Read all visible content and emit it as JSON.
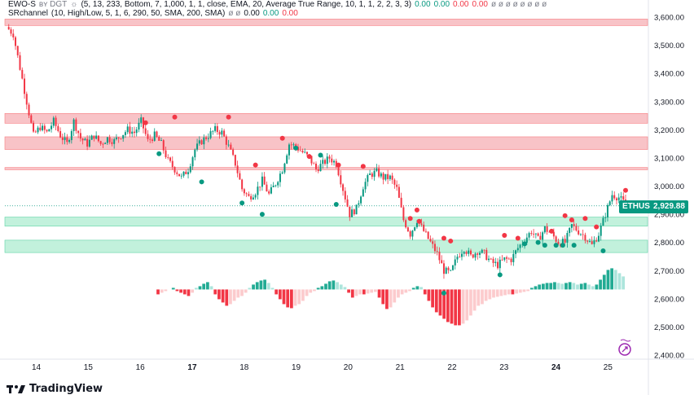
{
  "legend": {
    "ewo_title": "EWO-S",
    "ewo_badge": "ʙʏ DGT",
    "ewo_params": "(5, 13, 233, Bottom, 7, 1,000, 1, 1, close, EMA, 20, Average True Range, 10, 1, 1, 2, 2, 3, 3)",
    "ewo_values": [
      {
        "text": "0.00",
        "color": "#089981"
      },
      {
        "text": "0.00",
        "color": "#089981"
      },
      {
        "text": "0.00",
        "color": "#f23645"
      },
      {
        "text": "0.00",
        "color": "#f23645"
      },
      {
        "text": "ø ø ø ø ø ø ø ø",
        "color": "#787b86"
      }
    ],
    "sr_title": "SRchannel",
    "sr_params": "(10, High/Low, 5, 1, 6, 290, 50, SMA, 200, SMA)",
    "sr_values": [
      {
        "text": "ø ø",
        "color": "#787b86"
      },
      {
        "text": "0.00",
        "color": "#131722"
      },
      {
        "text": "0.00",
        "color": "#089981"
      },
      {
        "text": "0.00",
        "color": "#f23645"
      }
    ]
  },
  "symbol": "ETHUSD",
  "last_price": "2,929.88",
  "brand": "TradingView",
  "colors": {
    "up": "#089981",
    "down": "#f23645",
    "resistance_zone": "#f7b9bd",
    "support_zone": "#b7eed6"
  },
  "chart_data": {
    "type": "candlestick",
    "y_axis": {
      "ticks": [
        "3,600.00",
        "3,500.00",
        "3,400.00",
        "3,300.00",
        "3,200.00",
        "3,100.00",
        "3,000.00",
        "2,900.00",
        "2,800.00",
        "2,700.00",
        "2,600.00",
        "2,500.00",
        "2,400.00"
      ],
      "tick_values": [
        3600,
        3500,
        3400,
        3300,
        3200,
        3100,
        3000,
        2900,
        2800,
        2700,
        2600,
        2500,
        2400
      ],
      "range": [
        2400,
        3600
      ]
    },
    "x_axis": {
      "labels": [
        "14",
        "15",
        "16",
        "17",
        "18",
        "19",
        "20",
        "21",
        "22",
        "23",
        "24",
        "25"
      ],
      "bold": [
        "17",
        "24"
      ]
    },
    "current_price": 2929.88,
    "zones": [
      {
        "kind": "resistance",
        "low": 3570,
        "high": 3593
      },
      {
        "kind": "resistance",
        "low": 3223,
        "high": 3258
      },
      {
        "kind": "resistance",
        "low": 3130,
        "high": 3175
      },
      {
        "kind": "resistance",
        "low": 3058,
        "high": 3066
      },
      {
        "kind": "support",
        "low": 2858,
        "high": 2890
      },
      {
        "kind": "support",
        "low": 2764,
        "high": 2808
      }
    ],
    "price_path": [
      [
        0,
        3565
      ],
      [
        3,
        3540
      ],
      [
        6,
        3420
      ],
      [
        9,
        3300
      ],
      [
        12,
        3180
      ],
      [
        15,
        3210
      ],
      [
        18,
        3190
      ],
      [
        21,
        3230
      ],
      [
        24,
        3180
      ],
      [
        27,
        3150
      ],
      [
        30,
        3230
      ],
      [
        33,
        3170
      ],
      [
        36,
        3150
      ],
      [
        39,
        3180
      ],
      [
        42,
        3150
      ],
      [
        45,
        3170
      ],
      [
        48,
        3160
      ],
      [
        51,
        3180
      ],
      [
        54,
        3200
      ],
      [
        57,
        3190
      ],
      [
        60,
        3230
      ],
      [
        63,
        3160
      ],
      [
        66,
        3180
      ],
      [
        69,
        3150
      ],
      [
        72,
        3090
      ],
      [
        75,
        3060
      ],
      [
        78,
        3030
      ],
      [
        81,
        3060
      ],
      [
        84,
        3130
      ],
      [
        87,
        3160
      ],
      [
        90,
        3180
      ],
      [
        93,
        3200
      ],
      [
        96,
        3190
      ],
      [
        99,
        3140
      ],
      [
        102,
        3080
      ],
      [
        105,
        2990
      ],
      [
        108,
        2960
      ],
      [
        111,
        2980
      ],
      [
        114,
        3020
      ],
      [
        117,
        2970
      ],
      [
        120,
        3010
      ],
      [
        123,
        3060
      ],
      [
        126,
        3150
      ],
      [
        129,
        3140
      ],
      [
        132,
        3120
      ],
      [
        135,
        3100
      ],
      [
        138,
        3060
      ],
      [
        141,
        3080
      ],
      [
        144,
        3100
      ],
      [
        147,
        3080
      ],
      [
        150,
        2990
      ],
      [
        153,
        2900
      ],
      [
        156,
        2920
      ],
      [
        159,
        3000
      ],
      [
        162,
        3040
      ],
      [
        165,
        3050
      ],
      [
        168,
        3030
      ],
      [
        171,
        3030
      ],
      [
        174,
        2990
      ],
      [
        177,
        2880
      ],
      [
        180,
        2830
      ],
      [
        183,
        2880
      ],
      [
        186,
        2840
      ],
      [
        189,
        2800
      ],
      [
        192,
        2760
      ],
      [
        195,
        2700
      ],
      [
        198,
        2690
      ],
      [
        201,
        2750
      ],
      [
        204,
        2780
      ],
      [
        207,
        2750
      ],
      [
        210,
        2770
      ],
      [
        213,
        2760
      ],
      [
        216,
        2730
      ],
      [
        219,
        2720
      ],
      [
        222,
        2740
      ],
      [
        225,
        2740
      ],
      [
        228,
        2780
      ],
      [
        231,
        2810
      ],
      [
        234,
        2840
      ],
      [
        237,
        2810
      ],
      [
        240,
        2850
      ],
      [
        243,
        2830
      ],
      [
        246,
        2800
      ],
      [
        249,
        2800
      ],
      [
        252,
        2860
      ],
      [
        255,
        2840
      ],
      [
        258,
        2820
      ],
      [
        261,
        2790
      ],
      [
        264,
        2830
      ],
      [
        267,
        2900
      ],
      [
        270,
        2970
      ],
      [
        273,
        2960
      ],
      [
        276,
        2935
      ]
    ],
    "markers_red": [
      [
        62,
        3225
      ],
      [
        75,
        3245
      ],
      [
        99,
        3245
      ],
      [
        111,
        3075
      ],
      [
        123,
        3170
      ],
      [
        135,
        3105
      ],
      [
        148,
        3075
      ],
      [
        159,
        3070
      ],
      [
        180,
        2885
      ],
      [
        183,
        2915
      ],
      [
        184,
        2875
      ],
      [
        195,
        2815
      ],
      [
        198,
        2805
      ],
      [
        222,
        2825
      ],
      [
        228,
        2815
      ],
      [
        243,
        2840
      ],
      [
        249,
        2895
      ],
      [
        252,
        2880
      ],
      [
        258,
        2885
      ],
      [
        263,
        2855
      ],
      [
        276,
        2985
      ]
    ],
    "markers_green": [
      [
        68,
        3115
      ],
      [
        87,
        3015
      ],
      [
        105,
        2940
      ],
      [
        114,
        2900
      ],
      [
        129,
        3135
      ],
      [
        140,
        3110
      ],
      [
        147,
        2935
      ],
      [
        195,
        2620
      ],
      [
        220,
        2685
      ],
      [
        231,
        2795
      ],
      [
        237,
        2800
      ],
      [
        240,
        2790
      ],
      [
        245,
        2790
      ],
      [
        248,
        2790
      ],
      [
        253,
        2790
      ],
      [
        266,
        2770
      ]
    ],
    "oscillator": {
      "zero": 2633,
      "values": [
        0,
        0,
        0,
        0,
        0,
        0,
        0,
        0,
        0,
        -0.3,
        -0.2,
        -0.1,
        0,
        0.1,
        -0.1,
        -0.2,
        -0.3,
        -0.4,
        -0.2,
        0.1,
        0.2,
        0.35,
        0.45,
        0.2,
        -0.3,
        -0.6,
        -0.8,
        -1,
        -0.9,
        -0.7,
        -0.5,
        -0.4,
        -0.2,
        0.1,
        0.3,
        0.45,
        0.55,
        0.6,
        0.4,
        0.1,
        -0.3,
        -0.6,
        -0.9,
        -1.1,
        -1.15,
        -1,
        -0.9,
        -0.7,
        -0.4,
        -0.2,
        -0.1,
        0.1,
        0.2,
        0.35,
        0.5,
        0.55,
        0.45,
        0.3,
        0.15,
        -0.2,
        -0.5,
        -0.4,
        -0.3,
        -0.3,
        -0.25,
        -0.2,
        -0.15,
        -0.5,
        -0.9,
        -1.2,
        -1.1,
        -0.8,
        -0.5,
        -0.3,
        -0.2,
        -0.1,
        0.1,
        0.2,
        0.15,
        -0.3,
        -0.7,
        -1.1,
        -1.4,
        -1.6,
        -1.8,
        -2,
        -2.1,
        -2.2,
        -2.2,
        -2.1,
        -1.9,
        -1.6,
        -1.3,
        -1,
        -0.9,
        -0.7,
        -0.6,
        -0.5,
        -0.45,
        -0.4,
        -0.35,
        -0.3,
        -0.3,
        -0.25,
        -0.2,
        -0.15,
        -0.1,
        0.1,
        0.2,
        0.3,
        0.35,
        0.4,
        0.4,
        0.45,
        0.4,
        0.35,
        0.4,
        0.45,
        0.4,
        0.3,
        0.35,
        0.4,
        0.3,
        0.2,
        0.3,
        0.6,
        0.9,
        1.2,
        1.3,
        1.2,
        1.0,
        0.8
      ]
    }
  }
}
